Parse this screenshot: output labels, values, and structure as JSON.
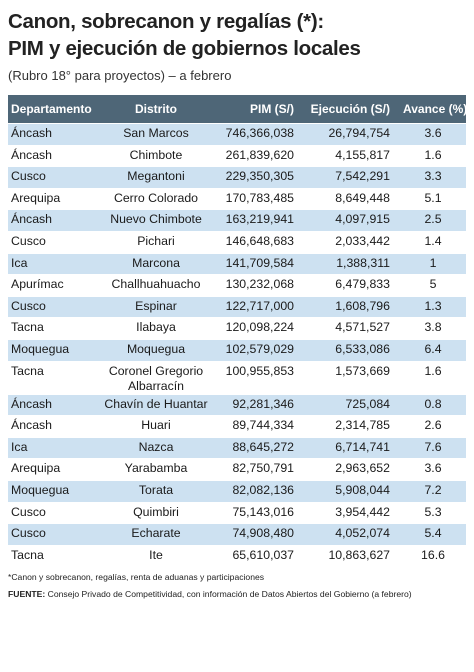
{
  "header": {
    "title_line1": "Canon, sobrecanon y regalías (*):",
    "title_line2": "PIM y ejecución de gobiernos locales",
    "subtitle": "(Rubro 18° para proyectos) – a febrero"
  },
  "table": {
    "columns": [
      "Departamento",
      "Distrito",
      "PIM (S/)",
      "Ejecución (S/)",
      "Avance (%)"
    ],
    "rows": [
      [
        "Áncash",
        "San Marcos",
        "746,366,038",
        "26,794,754",
        "3.6"
      ],
      [
        "Áncash",
        "Chimbote",
        "261,839,620",
        "4,155,817",
        "1.6"
      ],
      [
        "Cusco",
        "Megantoni",
        "229,350,305",
        "7,542,291",
        "3.3"
      ],
      [
        "Arequipa",
        "Cerro Colorado",
        "170,783,485",
        "8,649,448",
        "5.1"
      ],
      [
        "Áncash",
        "Nuevo Chimbote",
        "163,219,941",
        "4,097,915",
        "2.5"
      ],
      [
        "Cusco",
        "Pichari",
        "146,648,683",
        "2,033,442",
        "1.4"
      ],
      [
        "Ica",
        "Marcona",
        "141,709,584",
        "1,388,311",
        "1"
      ],
      [
        "Apurímac",
        "Challhuahuacho",
        "130,232,068",
        "6,479,833",
        "5"
      ],
      [
        "Cusco",
        "Espinar",
        "122,717,000",
        "1,608,796",
        "1.3"
      ],
      [
        "Tacna",
        "Ilabaya",
        "120,098,224",
        "4,571,527",
        "3.8"
      ],
      [
        "Moquegua",
        "Moquegua",
        "102,579,029",
        "6,533,086",
        "6.4"
      ],
      [
        "Tacna",
        "Coronel Gregorio Albarracín",
        "100,955,853",
        "1,573,669",
        "1.6"
      ],
      [
        "Áncash",
        "Chavín de Huantar",
        "92,281,346",
        "725,084",
        "0.8"
      ],
      [
        "Áncash",
        "Huari",
        "89,744,334",
        "2,314,785",
        "2.6"
      ],
      [
        "Ica",
        "Nazca",
        "88,645,272",
        "6,714,741",
        "7.6"
      ],
      [
        "Arequipa",
        "Yarabamba",
        "82,750,791",
        "2,963,652",
        "3.6"
      ],
      [
        "Moquegua",
        "Torata",
        "82,082,136",
        "5,908,044",
        "7.2"
      ],
      [
        "Cusco",
        "Quimbiri",
        "75,143,016",
        "3,954,442",
        "5.3"
      ],
      [
        "Cusco",
        "Echarate",
        "74,908,480",
        "4,052,074",
        "5.4"
      ],
      [
        "Tacna",
        "Ite",
        "65,610,037",
        "10,863,627",
        "16.6"
      ]
    ]
  },
  "footnotes": {
    "note": "*Canon y sobrecanon, regalías, renta de aduanas y participaciones",
    "source_label": "FUENTE:",
    "source_text": "Consejo Privado de Competitividad, con información de Datos Abiertos del Gobierno (a febrero)"
  }
}
